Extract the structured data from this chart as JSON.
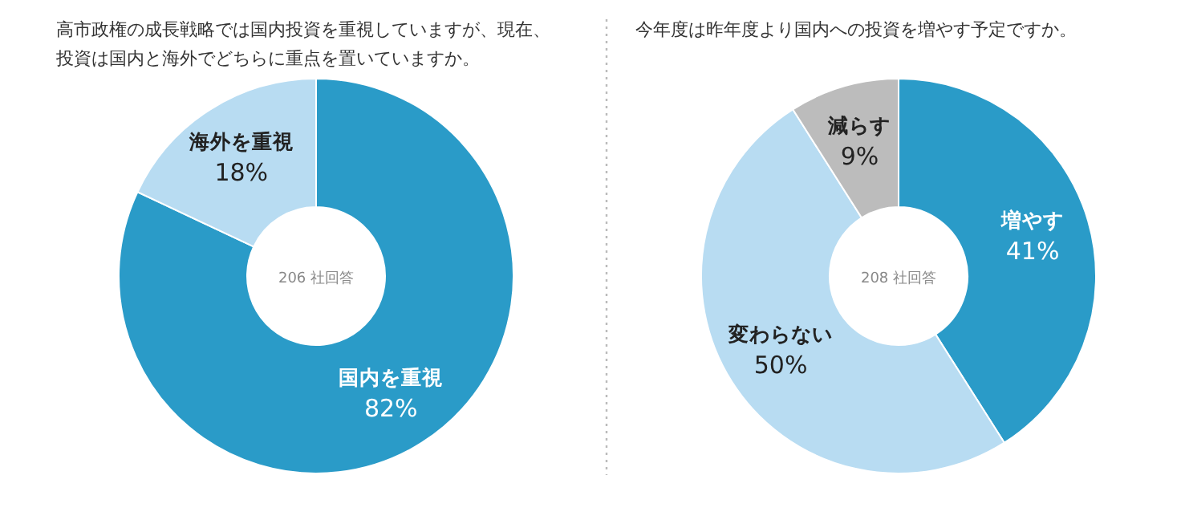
{
  "chart_data": [
    {
      "type": "donut",
      "title": "高市政権の成長戦略では国内投資を重視していますが、現在、投資は国内と海外でどちらに重点を置いていますか。",
      "categories": [
        "国内を重視",
        "海外を重視"
      ],
      "values": [
        82,
        18
      ],
      "value_labels": [
        "82%",
        "18%"
      ],
      "colors": [
        "#2a9bc8",
        "#b8dcf2"
      ],
      "annotations": [
        "206 社回答"
      ]
    },
    {
      "type": "donut",
      "title": "今年度は昨年度より国内への投資を増やす予定ですか。",
      "categories": [
        "増やす",
        "変わらない",
        "減らす"
      ],
      "values": [
        41,
        50,
        9
      ],
      "value_labels": [
        "41%",
        "50%",
        "9%"
      ],
      "colors": [
        "#2a9bc8",
        "#b8dcf2",
        "#bcbcbc"
      ],
      "annotations": [
        "208 社回答"
      ]
    }
  ]
}
